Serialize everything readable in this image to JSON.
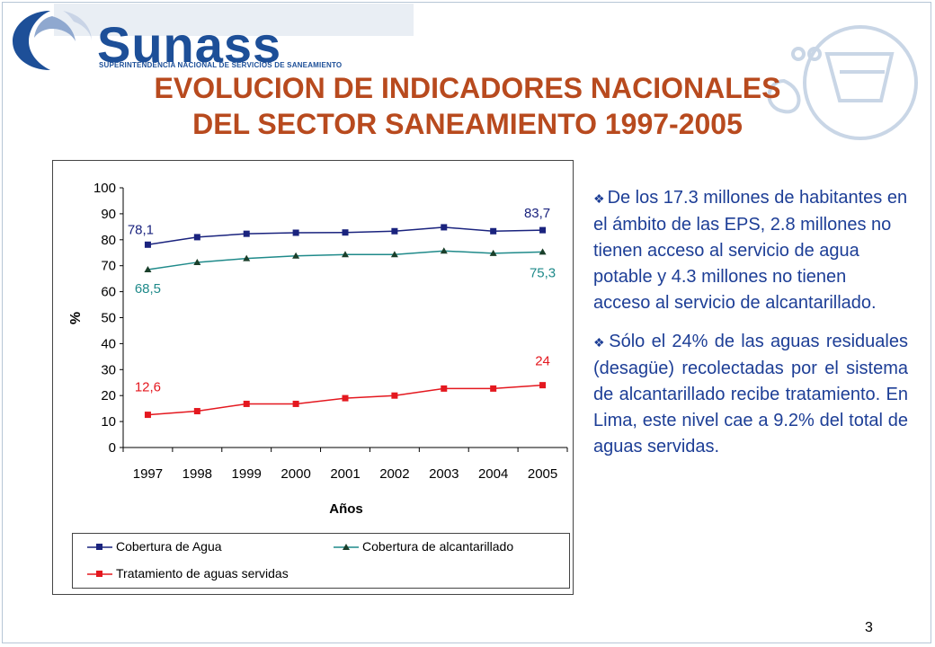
{
  "brand": {
    "name": "Sunass",
    "subtitle": "SUPERINTENDENCIA NACIONAL DE SERVICIOS DE SANEAMIENTO",
    "color": "#1d4f98"
  },
  "slide": {
    "title_line1": "EVOLUCION DE INDICADORES NACIONALES",
    "title_line2": "DEL SECTOR SANEAMIENTO 1997-2005",
    "title_color": "#b84a1e",
    "page_number": "3"
  },
  "chart_data": {
    "type": "line",
    "xlabel": "Años",
    "ylabel": "%",
    "ylim": [
      0,
      100
    ],
    "yticks": [
      "0",
      "10",
      "20",
      "30",
      "40",
      "50",
      "60",
      "70",
      "80",
      "90",
      "100"
    ],
    "categories": [
      "1997",
      "1998",
      "1999",
      "2000",
      "2001",
      "2002",
      "2003",
      "2004",
      "2005"
    ],
    "grid": false,
    "legend_position": "bottom",
    "series": [
      {
        "name": "Cobertura de Agua",
        "color": "#1a237e",
        "marker": "square",
        "values": [
          78.1,
          81,
          82.3,
          82.7,
          82.8,
          83.3,
          84.8,
          83.3,
          83.7
        ],
        "labels": {
          "first": "78,1",
          "last": "83,7"
        }
      },
      {
        "name": "Cobertura de alcantarillado",
        "color": "#1f8a8a",
        "marker": "triangle",
        "values": [
          68.5,
          71.3,
          72.8,
          73.8,
          74.3,
          74.3,
          75.7,
          74.8,
          75.3
        ],
        "labels": {
          "first": "68,5",
          "last": "75,3"
        }
      },
      {
        "name": "Tratamiento de aguas servidas",
        "color": "#e4181f",
        "marker": "square",
        "values": [
          12.6,
          14,
          16.8,
          16.8,
          19,
          20,
          22.7,
          22.7,
          24
        ],
        "labels": {
          "first": "12,6",
          "last": "24"
        }
      }
    ]
  },
  "bullets": [
    {
      "text": "De los 17.3 millones de habitantes en el ámbito de las EPS, 2.8 millones no tienen acceso al servicio de agua potable y 4.3 millones no tienen acceso al servicio de alcantarillado."
    },
    {
      "text": "Sólo el 24% de las aguas residuales (desagüe) recolectadas por el sistema de alcantarillado recibe tratamiento. En Lima, este nivel cae a 9.2% del total de aguas servidas."
    }
  ]
}
